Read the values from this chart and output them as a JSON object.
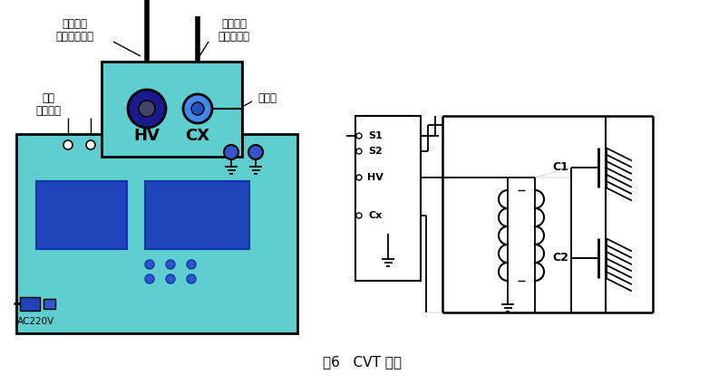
{
  "title": "图6   CVT 接线",
  "bg_color": "#ffffff",
  "cyan_light": "#5ecece",
  "blue_dark": "#2244bb",
  "blue_mid": "#3355cc",
  "fig_width": 7.82,
  "fig_height": 4.24,
  "labels": {
    "top_left1": "高压电缆",
    "top_left2": "连非测试电容",
    "top_right1": "低压电缆",
    "top_right2": "连测试电容",
    "left1": "试品",
    "left2": "自激输入",
    "right_gnd": "接大地",
    "ac": "AC220V",
    "hv": "HV",
    "cx": "CX",
    "s1": "S1",
    "s2": "S2",
    "hv2": "HV",
    "cx2": "Cx",
    "c1": "C1",
    "c2": "C2"
  }
}
